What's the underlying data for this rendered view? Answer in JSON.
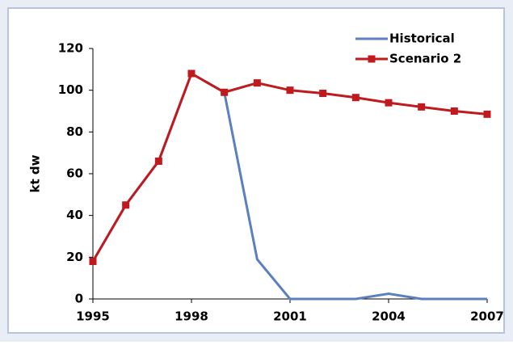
{
  "chart_data": {
    "type": "line",
    "y_label": "kt dw",
    "x": [
      1995,
      1996,
      1997,
      1998,
      1999,
      2000,
      2001,
      2002,
      2003,
      2004,
      2005,
      2006,
      2007
    ],
    "series": [
      {
        "name": "Historical",
        "color": "#5b7fbf",
        "values": [
          18,
          45,
          66,
          108,
          99,
          19,
          0,
          0,
          0,
          2.5,
          0,
          0,
          0
        ]
      },
      {
        "name": "Scenario 2",
        "color": "#c0191e",
        "marker": "square",
        "values": [
          18,
          45,
          66,
          108,
          99,
          103.5,
          100,
          98.5,
          96.5,
          94,
          92,
          90,
          88.5
        ]
      }
    ],
    "xlim": [
      1995,
      2007
    ],
    "xticks": [
      1995,
      1998,
      2001,
      2004,
      2007
    ],
    "ylim": [
      0,
      120
    ],
    "yticks": [
      0,
      20,
      40,
      60,
      80,
      100,
      120
    ],
    "legend": "top-right"
  }
}
